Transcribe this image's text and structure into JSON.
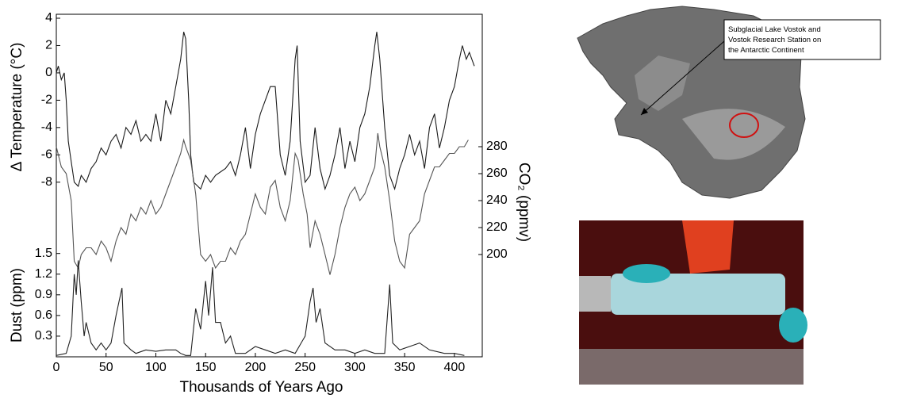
{
  "chart_data": [
    {
      "type": "line",
      "ylabel": "Δ Temperature (°C)",
      "color": "#1a1a1a",
      "xlim": [
        0,
        428
      ],
      "ylim": [
        -9,
        4
      ],
      "yticks": [
        4,
        2,
        0,
        -2,
        -4,
        -6,
        -8
      ],
      "x": [
        0,
        2,
        5,
        8,
        10,
        12,
        15,
        18,
        22,
        25,
        30,
        35,
        40,
        45,
        50,
        55,
        60,
        65,
        70,
        75,
        80,
        85,
        90,
        95,
        100,
        105,
        110,
        115,
        120,
        125,
        128,
        130,
        133,
        135,
        138,
        145,
        150,
        155,
        160,
        170,
        175,
        180,
        185,
        190,
        195,
        200,
        205,
        210,
        215,
        220,
        222,
        225,
        230,
        235,
        240,
        242,
        245,
        250,
        255,
        260,
        265,
        270,
        275,
        280,
        285,
        290,
        295,
        300,
        305,
        310,
        315,
        320,
        322,
        325,
        330,
        335,
        340,
        345,
        350,
        355,
        360,
        365,
        370,
        375,
        380,
        385,
        390,
        395,
        400,
        405,
        408,
        412,
        415,
        420
      ],
      "values": [
        0,
        0.5,
        -0.5,
        0,
        -2,
        -5,
        -6.5,
        -8,
        -8.3,
        -7.5,
        -8,
        -7,
        -6.5,
        -5.5,
        -6,
        -5,
        -4.5,
        -5.5,
        -4,
        -4.5,
        -3.5,
        -5,
        -4.5,
        -5,
        -3,
        -5,
        -2,
        -3,
        -1,
        1,
        3,
        2.5,
        -2,
        -6,
        -8,
        -8.5,
        -7.5,
        -8,
        -7.5,
        -7,
        -6.5,
        -7.5,
        -6,
        -4,
        -7,
        -4.5,
        -3,
        -2,
        -1,
        -1,
        -3,
        -6,
        -7.5,
        -5,
        1,
        2,
        -5,
        -8,
        -7.5,
        -4,
        -7,
        -8.5,
        -7.5,
        -6,
        -4,
        -7,
        -5,
        -6.5,
        -4,
        -3,
        -1,
        2,
        3,
        1,
        -4,
        -7.5,
        -8.5,
        -7,
        -6,
        -4.5,
        -6,
        -5,
        -7,
        -4,
        -3,
        -5.5,
        -4,
        -2,
        -1,
        1,
        2,
        1,
        1.5,
        0.5
      ]
    },
    {
      "type": "line",
      "ylabel": "CO₂ (ppmv)",
      "yaxis": "right",
      "color": "#555555",
      "xlim": [
        0,
        428
      ],
      "ylim": [
        180,
        290
      ],
      "yticks": [
        280,
        260,
        240,
        220,
        200
      ],
      "x": [
        0,
        5,
        10,
        15,
        18,
        22,
        25,
        30,
        35,
        40,
        45,
        50,
        55,
        60,
        65,
        70,
        75,
        80,
        85,
        90,
        95,
        100,
        105,
        110,
        115,
        120,
        125,
        128,
        130,
        135,
        140,
        145,
        150,
        155,
        160,
        165,
        170,
        175,
        180,
        185,
        190,
        195,
        200,
        205,
        210,
        215,
        220,
        225,
        230,
        235,
        240,
        243,
        248,
        252,
        255,
        260,
        265,
        270,
        275,
        280,
        285,
        290,
        295,
        300,
        305,
        310,
        315,
        320,
        323,
        325,
        330,
        335,
        340,
        345,
        350,
        355,
        360,
        365,
        370,
        375,
        380,
        385,
        390,
        395,
        400,
        405,
        410,
        414
      ],
      "values": [
        280,
        265,
        260,
        240,
        195,
        190,
        200,
        205,
        205,
        200,
        210,
        205,
        195,
        210,
        220,
        215,
        230,
        225,
        235,
        230,
        240,
        230,
        235,
        245,
        255,
        265,
        275,
        285,
        280,
        270,
        245,
        200,
        195,
        200,
        190,
        195,
        195,
        205,
        200,
        210,
        215,
        230,
        245,
        235,
        230,
        250,
        255,
        235,
        225,
        240,
        275,
        270,
        245,
        230,
        205,
        225,
        215,
        200,
        185,
        200,
        220,
        235,
        245,
        250,
        240,
        245,
        255,
        265,
        290,
        280,
        265,
        240,
        210,
        195,
        190,
        215,
        220,
        225,
        245,
        255,
        265,
        265,
        270,
        275,
        275,
        280,
        280,
        285
      ]
    },
    {
      "type": "line",
      "ylabel": "Dust (ppm)",
      "xlabel": "Thousands of Years Ago",
      "color": "#222222",
      "xlim": [
        0,
        428
      ],
      "xticks": [
        0,
        50,
        100,
        150,
        200,
        250,
        300,
        350,
        400
      ],
      "ylim": [
        0,
        1.6
      ],
      "yticks": [
        1.5,
        1.2,
        0.9,
        0.6,
        0.3
      ],
      "x": [
        0,
        10,
        15,
        18,
        20,
        22,
        25,
        28,
        30,
        35,
        40,
        45,
        50,
        55,
        60,
        63,
        66,
        68,
        75,
        80,
        90,
        100,
        110,
        120,
        125,
        130,
        135,
        140,
        145,
        150,
        153,
        157,
        160,
        165,
        170,
        175,
        180,
        190,
        200,
        210,
        220,
        230,
        240,
        250,
        255,
        258,
        261,
        265,
        270,
        280,
        290,
        300,
        310,
        320,
        330,
        335,
        338,
        345,
        355,
        365,
        375,
        390,
        400,
        410
      ],
      "values": [
        0.02,
        0.05,
        0.3,
        1.2,
        0.9,
        1.4,
        0.8,
        0.3,
        0.5,
        0.2,
        0.1,
        0.2,
        0.1,
        0.2,
        0.6,
        0.8,
        1.0,
        0.2,
        0.1,
        0.05,
        0.1,
        0.08,
        0.1,
        0.1,
        0.05,
        0.02,
        0.02,
        0.7,
        0.4,
        1.1,
        0.6,
        1.3,
        0.5,
        0.5,
        0.2,
        0.3,
        0.05,
        0.05,
        0.15,
        0.1,
        0.05,
        0.1,
        0.05,
        0.3,
        0.8,
        1.0,
        0.5,
        0.7,
        0.2,
        0.1,
        0.1,
        0.05,
        0.1,
        0.05,
        0.05,
        1.05,
        0.2,
        0.1,
        0.15,
        0.2,
        0.1,
        0.05,
        0.05,
        0.02
      ]
    }
  ],
  "map": {
    "label_lines": [
      "Subglacial Lake Vostok and",
      "Vostok Research Station on",
      "the Antarctic Continent"
    ]
  }
}
